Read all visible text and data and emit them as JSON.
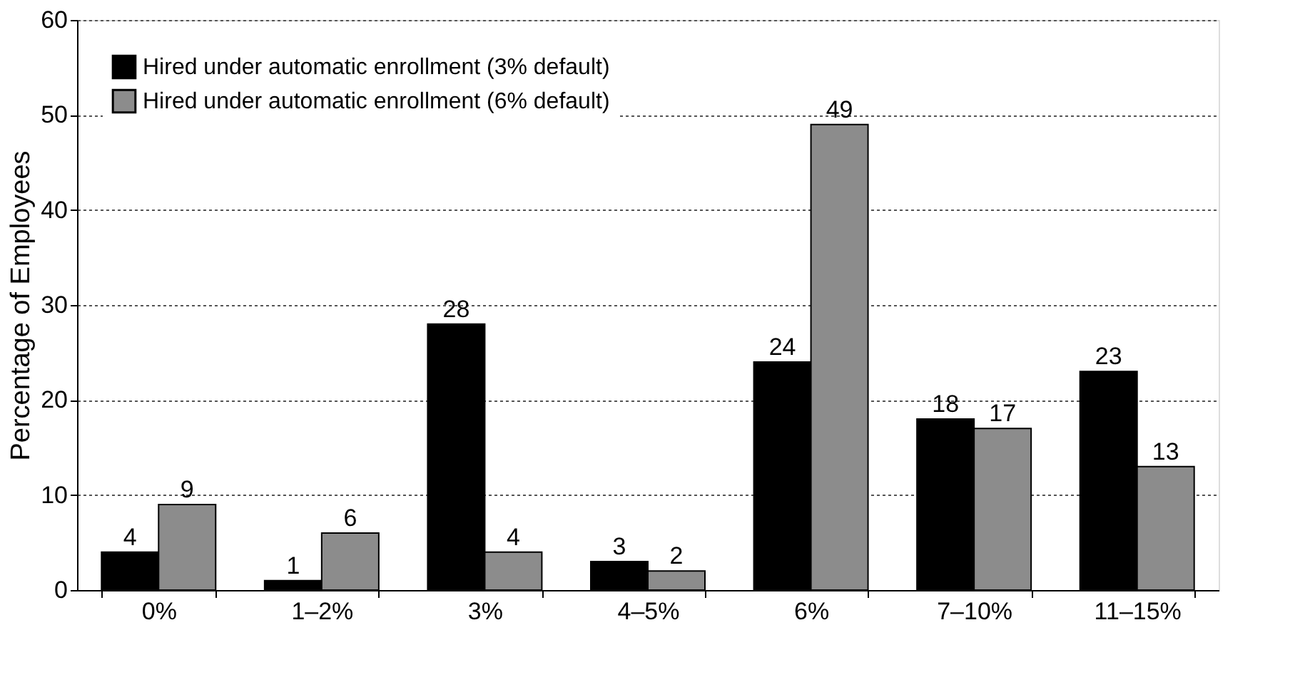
{
  "chart_data": {
    "type": "bar",
    "ylabel": "Percentage of Employees",
    "categories": [
      "0%",
      "1–2%",
      "3%",
      "4–5%",
      "6%",
      "7–10%",
      "11–15%"
    ],
    "series": [
      {
        "name": "Hired under automatic enrollment (3% default)",
        "color": "#000000",
        "values": [
          4,
          1,
          28,
          3,
          24,
          18,
          23
        ]
      },
      {
        "name": "Hired under automatic enrollment (6% default)",
        "color": "#8c8c8c",
        "values": [
          9,
          6,
          4,
          2,
          49,
          17,
          13
        ]
      }
    ],
    "ylim": [
      0,
      60
    ],
    "yticks": [
      0,
      10,
      20,
      30,
      40,
      50,
      60
    ],
    "grid": "y",
    "legend": "top left",
    "data_labels": true
  }
}
